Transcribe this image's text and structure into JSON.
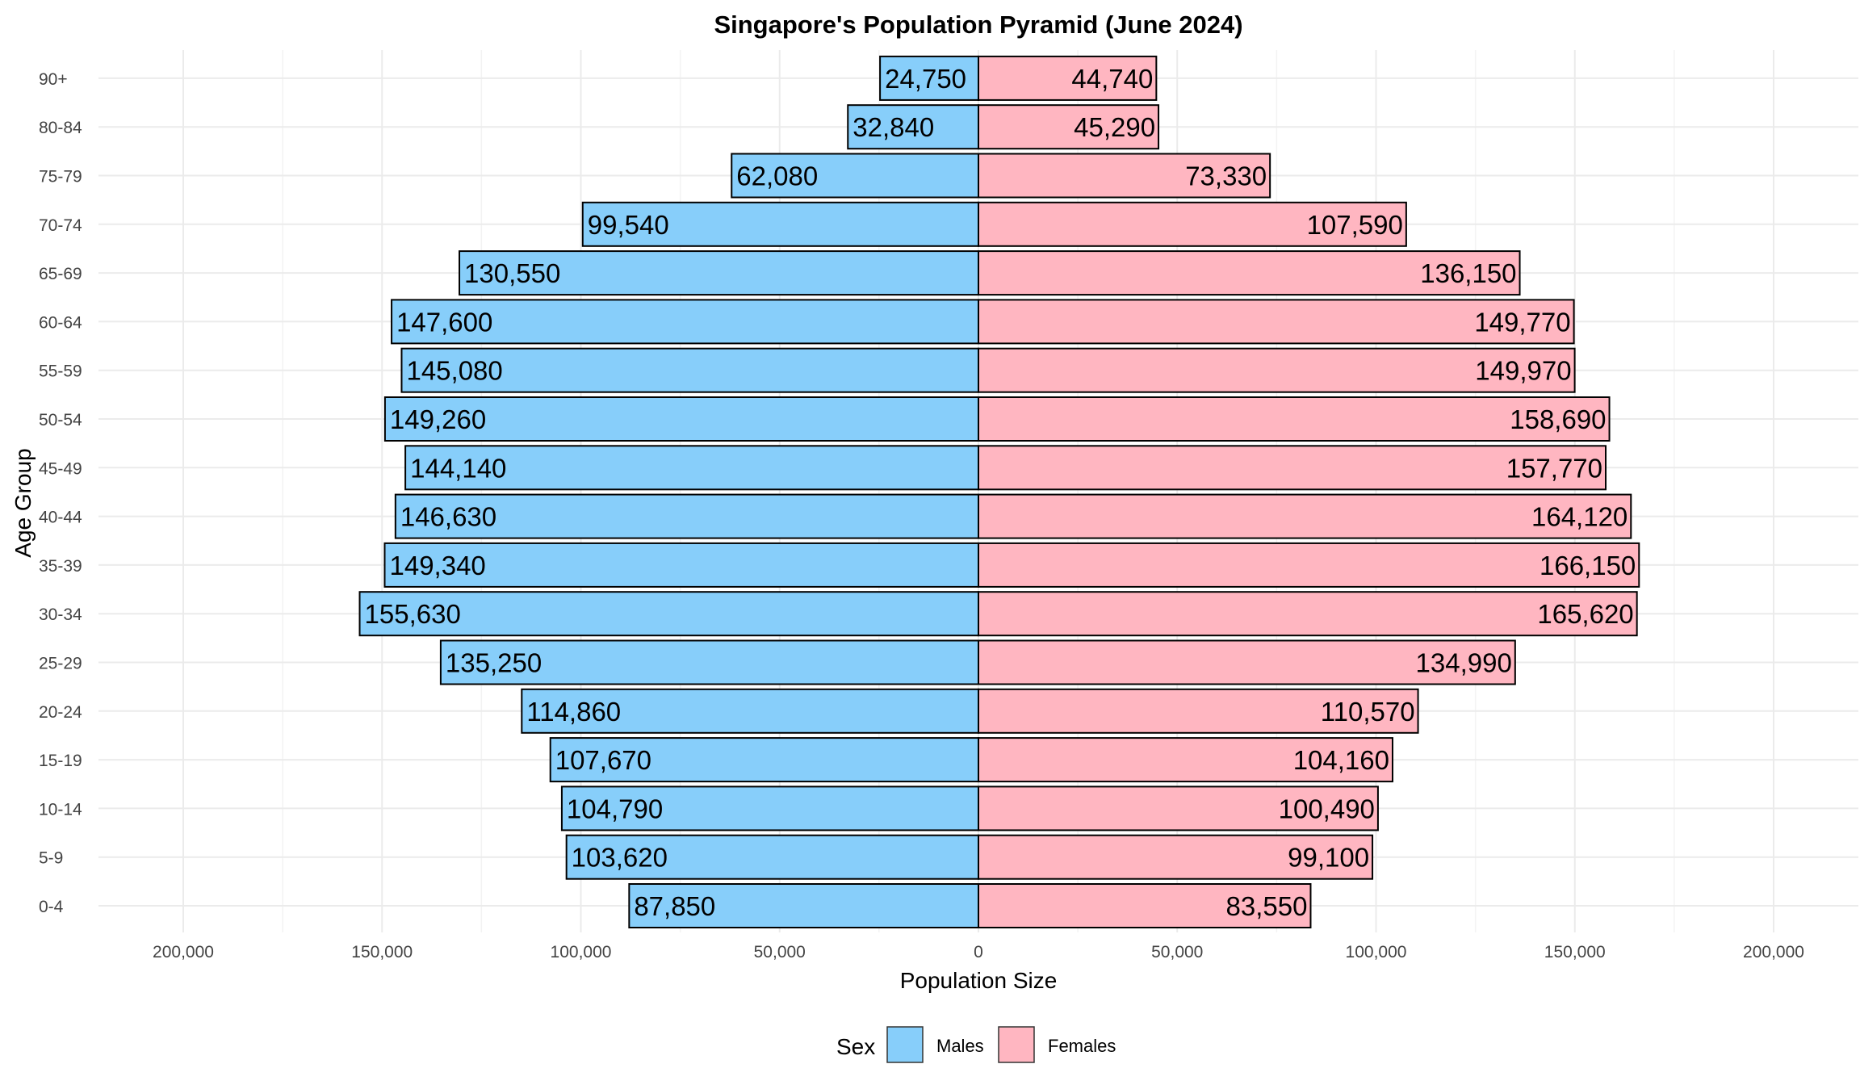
{
  "chart_data": {
    "type": "bar",
    "orientation": "horizontal",
    "title": "Singapore's Population Pyramid (June 2024)",
    "xlabel": "Population Size",
    "ylabel": "Age Group",
    "categories": [
      "0-4",
      "5-9",
      "10-14",
      "15-19",
      "20-24",
      "25-29",
      "30-34",
      "35-39",
      "40-44",
      "45-49",
      "50-54",
      "55-59",
      "60-64",
      "65-69",
      "70-74",
      "75-79",
      "80-84",
      "90+"
    ],
    "series": [
      {
        "name": "Males",
        "color": "#87CEFA",
        "values": [
          87850,
          103620,
          104790,
          107670,
          114860,
          135250,
          155630,
          149340,
          146630,
          144140,
          149260,
          145080,
          147600,
          130550,
          99540,
          62080,
          32840,
          24750
        ],
        "labels": [
          "87,850",
          "103,620",
          "104,790",
          "107,670",
          "114,860",
          "135,250",
          "155,630",
          "149,340",
          "146,630",
          "144,140",
          "149,260",
          "145,080",
          "147,600",
          "130,550",
          "99,540",
          "62,080",
          "32,840",
          "24,750"
        ]
      },
      {
        "name": "Females",
        "color": "#FFB6C1",
        "values": [
          83550,
          99100,
          100490,
          104160,
          110570,
          134990,
          165620,
          166150,
          164120,
          157770,
          158690,
          149970,
          149770,
          136150,
          107590,
          73330,
          45290,
          44740
        ],
        "labels": [
          "83,550",
          "99,100",
          "100,490",
          "104,160",
          "110,570",
          "134,990",
          "165,620",
          "166,150",
          "164,120",
          "157,770",
          "158,690",
          "149,970",
          "149,770",
          "136,150",
          "107,590",
          "73,330",
          "45,290",
          "44,740"
        ]
      }
    ],
    "xlim": [
      -200000,
      200000
    ],
    "xticks": [
      -200000,
      -150000,
      -100000,
      -50000,
      0,
      50000,
      100000,
      150000,
      200000
    ],
    "xtick_labels": [
      "200,000",
      "150,000",
      "100,000",
      "50,000",
      "0",
      "50,000",
      "100,000",
      "150,000",
      "200,000"
    ],
    "grid": true,
    "legend": {
      "title": "Sex",
      "position": "bottom",
      "entries": [
        "Males",
        "Females"
      ]
    }
  }
}
